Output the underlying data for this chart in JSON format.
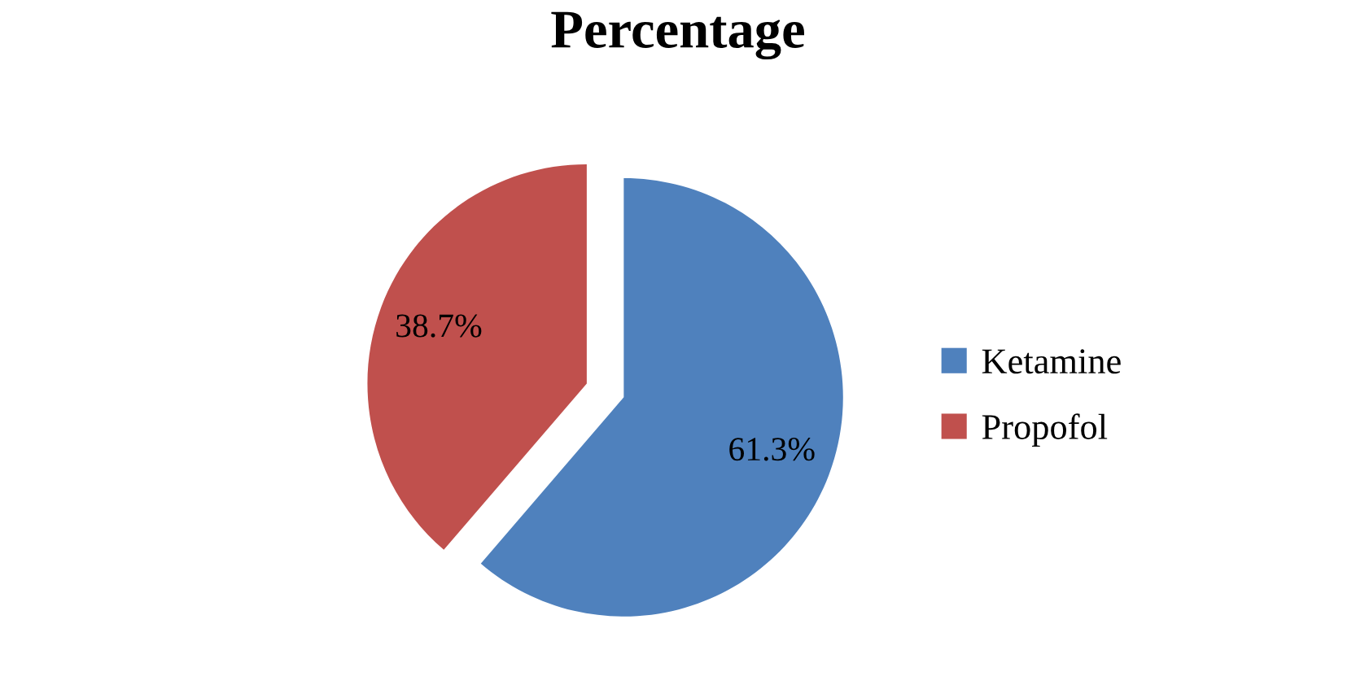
{
  "chart_data": {
    "type": "pie",
    "title": "Percentage",
    "categories": [
      "Ketamine",
      "Propofol"
    ],
    "values": [
      61.3,
      38.7
    ],
    "value_labels": [
      "61.3%",
      "38.7%"
    ],
    "colors": [
      "#4f81bd",
      "#c0504d"
    ],
    "legend": "right"
  }
}
